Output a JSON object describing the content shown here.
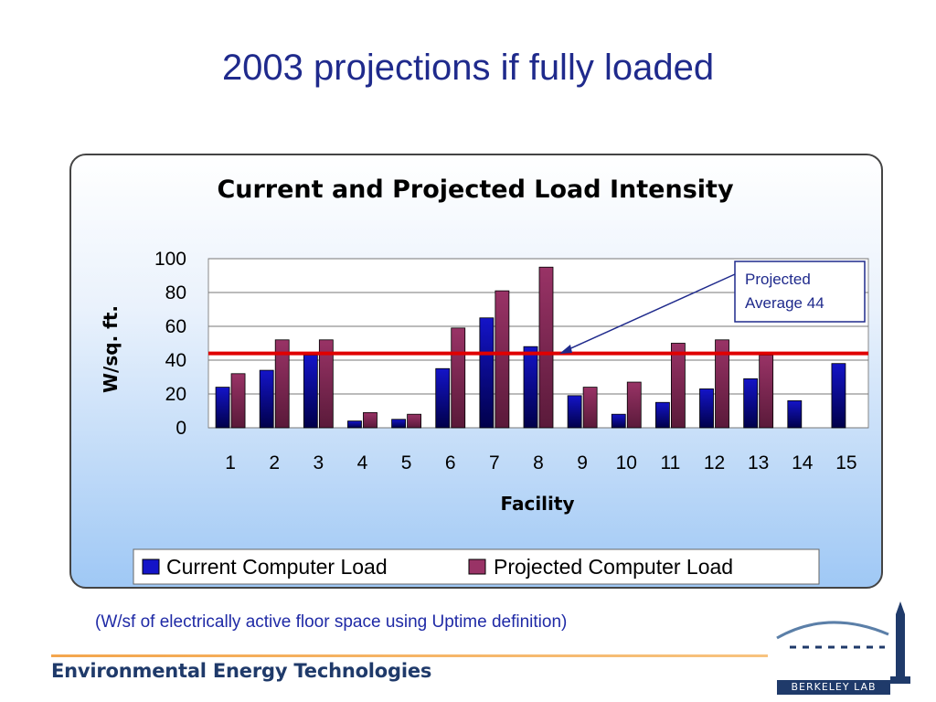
{
  "slide": {
    "title": "2003 projections if fully loaded",
    "footnote": "(W/sf of electrically active floor space using Uptime definition)",
    "footer": "Environmental Energy Technologies",
    "logo_text": "BERKELEY LAB"
  },
  "chart_data": {
    "type": "bar",
    "title": "Current and Projected Load Intensity",
    "xlabel": "Facility",
    "ylabel": "W/sq. ft.",
    "ylim": [
      0,
      100
    ],
    "yticks": [
      0,
      20,
      40,
      60,
      80,
      100
    ],
    "categories": [
      "1",
      "2",
      "3",
      "4",
      "5",
      "6",
      "7",
      "8",
      "9",
      "10",
      "11",
      "12",
      "13",
      "14",
      "15"
    ],
    "series": [
      {
        "name": "Current Computer Load",
        "color": "#1414c8",
        "values": [
          24,
          34,
          43,
          4,
          5,
          35,
          65,
          48,
          19,
          8,
          15,
          23,
          29,
          16,
          38
        ]
      },
      {
        "name": "Projected Computer Load",
        "color": "#993366",
        "values": [
          32,
          52,
          52,
          9,
          8,
          59,
          81,
          95,
          24,
          27,
          50,
          52,
          43,
          null,
          null
        ]
      }
    ],
    "reference_line": {
      "value": 44,
      "color": "#e00000",
      "label_line1": "Projected",
      "label_line2": "Average 44"
    },
    "grid": true,
    "legend": "bottom"
  }
}
